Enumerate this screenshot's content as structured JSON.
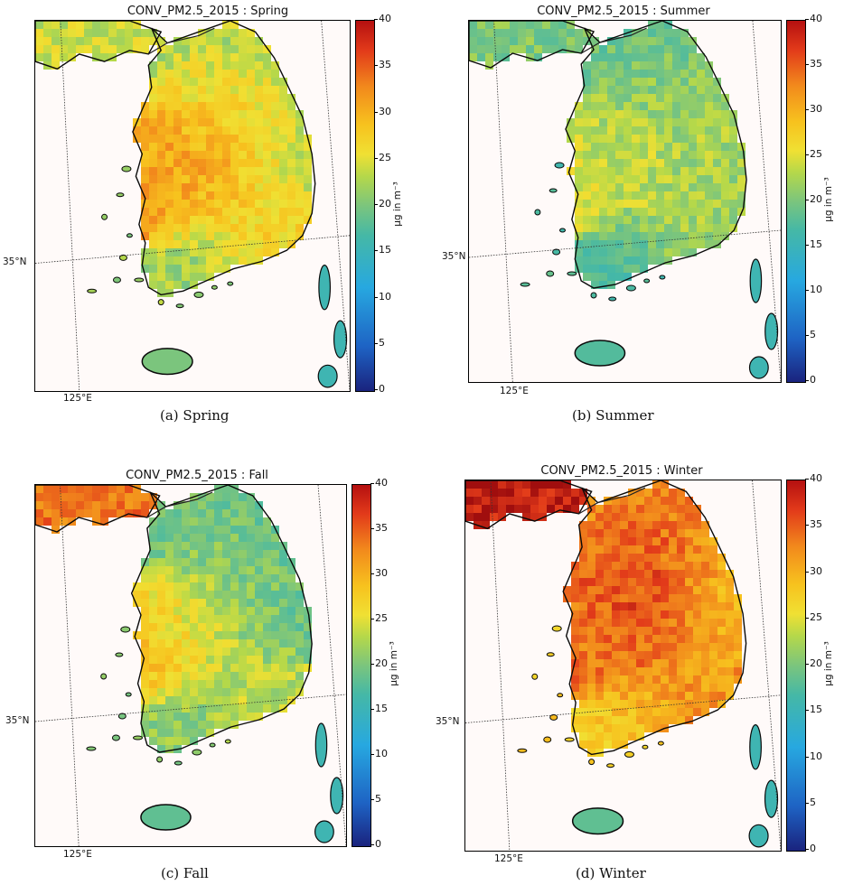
{
  "chart_data": [
    {
      "type": "heatmap",
      "title": "CONV_PM2.5_2015 : Spring",
      "caption": "(a) Spring",
      "lat_label": "35°N",
      "lon_label": "125°E",
      "colorbar": {
        "label": "μg in m⁻³",
        "ticks": [
          "0",
          "5",
          "10",
          "15",
          "20",
          "25",
          "30",
          "35",
          "40"
        ],
        "range": [
          0,
          40
        ]
      },
      "values": {
        "northwest": 24,
        "north": 23,
        "west": 31,
        "center": 30,
        "east": 24,
        "south": 27,
        "coast": 22,
        "jeju": 20
      }
    },
    {
      "type": "heatmap",
      "title": "CONV_PM2.5_2015 : Summer",
      "caption": "(b) Summer",
      "lat_label": "35°N",
      "lon_label": "125°E",
      "colorbar": {
        "label": "μg in m⁻³",
        "ticks": [
          "0",
          "5",
          "10",
          "15",
          "20",
          "25",
          "30",
          "35",
          "40"
        ],
        "range": [
          0,
          40
        ]
      },
      "values": {
        "northwest": 20,
        "north": 19,
        "west": 24,
        "center": 23,
        "east": 22,
        "south": 22,
        "coast": 17,
        "jeju": 17
      }
    },
    {
      "type": "heatmap",
      "title": "CONV_PM2.5_2015 : Fall",
      "caption": "(c) Fall",
      "lat_label": "35°N",
      "lon_label": "125°E",
      "colorbar": {
        "label": "μg in m⁻³",
        "ticks": [
          "0",
          "5",
          "10",
          "15",
          "20",
          "25",
          "30",
          "35",
          "40"
        ],
        "range": [
          0,
          40
        ]
      },
      "values": {
        "northwest": 34,
        "north": 19,
        "west": 28,
        "center": 22,
        "east": 19,
        "south": 23,
        "coast": 21,
        "jeju": 18
      }
    },
    {
      "type": "heatmap",
      "title": "CONV_PM2.5_2015 : Winter",
      "caption": "(d) Winter",
      "lat_label": "35°N",
      "lon_label": "125°E",
      "colorbar": {
        "label": "μg in m⁻³",
        "ticks": [
          "0",
          "5",
          "10",
          "15",
          "20",
          "25",
          "30",
          "35",
          "40"
        ],
        "range": [
          0,
          40
        ]
      },
      "values": {
        "northwest": 39,
        "north": 33,
        "west": 34,
        "center": 37,
        "east": 30,
        "south": 32,
        "coast": 28,
        "jeju": 18
      }
    }
  ]
}
